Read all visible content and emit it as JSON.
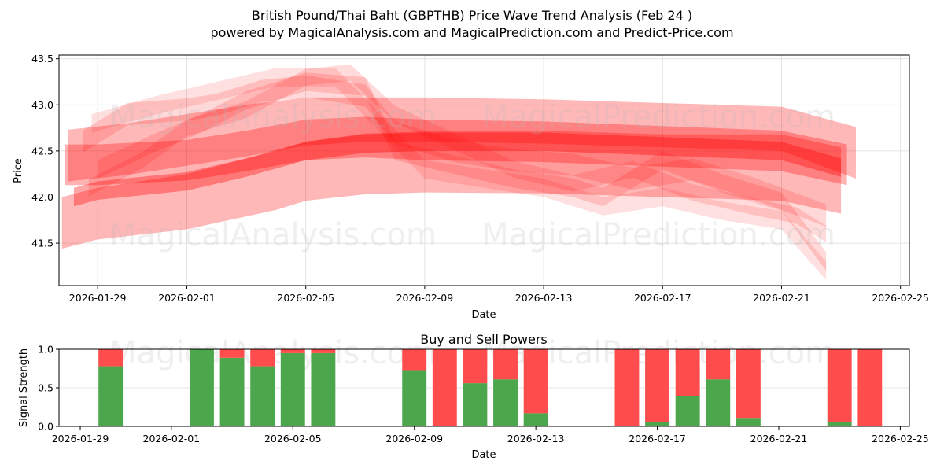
{
  "header": {
    "title": "British Pound/Thai Baht (GBPTHB) Price Wave Trend Analysis (Feb 24 )",
    "subtitle": "powered by MagicalAnalysis.com and MagicalPrediction.com and Predict-Price.com"
  },
  "watermarks": [
    "MagicalAnalysis.com",
    "MagicalPrediction.com"
  ],
  "colors": {
    "band": "#ff0000",
    "buy": "#4ca64c",
    "sell": "#ff4c4c",
    "grid": "#dddddd"
  },
  "chart_data": [
    {
      "type": "area",
      "title": "",
      "xlabel": "Date",
      "ylabel": "Price",
      "ylim": [
        41.04,
        43.54
      ],
      "yticks": [
        41.5,
        42.0,
        42.5,
        43.0,
        43.5
      ],
      "ytick_labels": [
        "41.5",
        "42.0",
        "42.5",
        "43.0",
        "43.5"
      ],
      "xticks": [
        "2026-01-29",
        "2026-02-01",
        "2026-02-05",
        "2026-02-09",
        "2026-02-13",
        "2026-02-17",
        "2026-02-21",
        "2026-02-25"
      ],
      "xtick_days": [
        0,
        3,
        7,
        11,
        15,
        19,
        23,
        27
      ],
      "xlim_days": [
        -1.3,
        27.3
      ],
      "grid": true,
      "bands": [
        {
          "name": "wide-low",
          "alpha": 0.28,
          "x": [
            -1.2,
            0,
            3,
            6,
            7,
            9,
            11,
            15,
            19,
            23,
            25
          ],
          "center": [
            41.72,
            41.82,
            41.95,
            42.18,
            42.28,
            42.36,
            42.38,
            42.38,
            42.34,
            42.32,
            42.18
          ],
          "half": [
            0.28,
            0.28,
            0.3,
            0.32,
            0.32,
            0.33,
            0.33,
            0.34,
            0.34,
            0.36,
            0.36
          ]
        },
        {
          "name": "wide-high",
          "alpha": 0.28,
          "x": [
            -1,
            1,
            3,
            5,
            7,
            9,
            11,
            15,
            19,
            23,
            25.5
          ],
          "center": [
            42.45,
            42.52,
            42.62,
            42.72,
            42.82,
            42.84,
            42.84,
            42.82,
            42.78,
            42.74,
            42.48
          ],
          "half": [
            0.28,
            0.28,
            0.28,
            0.28,
            0.26,
            0.24,
            0.24,
            0.24,
            0.24,
            0.24,
            0.28
          ]
        },
        {
          "name": "mid-1",
          "alpha": 0.3,
          "x": [
            -1.1,
            0,
            3,
            5,
            7,
            9,
            11,
            15,
            19,
            23,
            25.2
          ],
          "center": [
            42.35,
            42.35,
            42.4,
            42.5,
            42.62,
            42.65,
            42.62,
            42.6,
            42.55,
            42.5,
            42.35
          ],
          "half": [
            0.22,
            0.22,
            0.22,
            0.22,
            0.22,
            0.22,
            0.22,
            0.22,
            0.22,
            0.22,
            0.22
          ]
        },
        {
          "name": "core",
          "alpha": 0.35,
          "x": [
            -0.8,
            0,
            3,
            5,
            7,
            9,
            11,
            15,
            19,
            23,
            25
          ],
          "center": [
            42.0,
            42.07,
            42.17,
            42.32,
            42.5,
            42.58,
            42.6,
            42.6,
            42.55,
            42.5,
            42.32
          ],
          "half": [
            0.1,
            0.1,
            0.1,
            0.1,
            0.1,
            0.1,
            0.1,
            0.1,
            0.1,
            0.1,
            0.1
          ]
        },
        {
          "name": "wave-a",
          "alpha": 0.15,
          "x": [
            -0.5,
            1,
            3,
            4,
            5.5,
            7,
            9,
            10,
            12,
            14,
            16,
            18,
            20,
            22,
            24.5
          ],
          "center": [
            42.6,
            42.9,
            42.95,
            43.0,
            43.15,
            43.2,
            43.1,
            42.7,
            42.5,
            42.4,
            42.35,
            42.2,
            42.3,
            42.1,
            41.8
          ],
          "half": [
            0.12,
            0.12,
            0.12,
            0.12,
            0.12,
            0.12,
            0.12,
            0.12,
            0.12,
            0.12,
            0.12,
            0.12,
            0.12,
            0.12,
            0.12
          ]
        },
        {
          "name": "wave-b",
          "alpha": 0.15,
          "x": [
            0,
            2,
            3.5,
            5,
            7,
            9,
            10,
            12,
            14,
            16,
            17,
            19,
            21,
            23,
            24.5
          ],
          "center": [
            42.3,
            42.6,
            42.8,
            43.05,
            43.25,
            43.2,
            42.5,
            42.35,
            42.2,
            42.1,
            42.0,
            42.4,
            42.15,
            41.95,
            41.3
          ],
          "half": [
            0.1,
            0.1,
            0.1,
            0.1,
            0.1,
            0.1,
            0.1,
            0.1,
            0.1,
            0.1,
            0.1,
            0.1,
            0.1,
            0.1,
            0.1
          ]
        },
        {
          "name": "wave-c",
          "alpha": 0.14,
          "x": [
            -0.3,
            1.5,
            3,
            5,
            7,
            8.5,
            10,
            12,
            14,
            16,
            18,
            20,
            22,
            23.5,
            24.5
          ],
          "center": [
            42.1,
            42.4,
            42.75,
            42.95,
            43.3,
            43.35,
            42.9,
            42.6,
            42.3,
            42.15,
            42.3,
            42.05,
            41.9,
            41.8,
            41.6
          ],
          "half": [
            0.09,
            0.09,
            0.09,
            0.09,
            0.09,
            0.09,
            0.09,
            0.09,
            0.09,
            0.09,
            0.09,
            0.09,
            0.09,
            0.09,
            0.09
          ]
        },
        {
          "name": "wave-d",
          "alpha": 0.12,
          "x": [
            -0.2,
            2,
            4,
            6,
            8,
            9.5,
            11,
            13,
            15,
            17,
            19,
            21,
            23,
            24.5
          ],
          "center": [
            42.8,
            43.0,
            43.15,
            43.3,
            43.3,
            42.8,
            42.3,
            42.2,
            42.1,
            41.9,
            42.0,
            41.85,
            41.75,
            41.2
          ],
          "half": [
            0.1,
            0.1,
            0.1,
            0.1,
            0.1,
            0.1,
            0.1,
            0.1,
            0.1,
            0.1,
            0.1,
            0.1,
            0.1,
            0.1
          ]
        }
      ]
    },
    {
      "type": "bar",
      "title": "Buy and Sell Powers",
      "xlabel": "Date",
      "ylabel": "Signal Strength",
      "ylim": [
        0,
        1
      ],
      "yticks": [
        0.0,
        0.5,
        1.0
      ],
      "ytick_labels": [
        "0.0",
        "0.5",
        "1.0"
      ],
      "xticks": [
        "2026-01-29",
        "2026-02-01",
        "2026-02-05",
        "2026-02-09",
        "2026-02-13",
        "2026-02-17",
        "2026-02-21",
        "2026-02-25"
      ],
      "xtick_days": [
        0,
        3,
        7,
        11,
        15,
        19,
        23,
        27
      ],
      "xlim_days": [
        -0.7,
        27.3
      ],
      "categories": [
        "2026-01-30",
        "2026-02-02",
        "2026-02-03",
        "2026-02-04",
        "2026-02-05",
        "2026-02-06",
        "2026-02-09",
        "2026-02-10",
        "2026-02-11",
        "2026-02-12",
        "2026-02-13",
        "2026-02-16",
        "2026-02-17",
        "2026-02-18",
        "2026-02-19",
        "2026-02-20",
        "2026-02-23",
        "2026-02-24"
      ],
      "category_days": [
        1,
        4,
        5,
        6,
        7,
        8,
        11,
        12,
        13,
        14,
        15,
        18,
        19,
        20,
        21,
        22,
        25,
        26
      ],
      "series": [
        {
          "name": "Buy",
          "values": [
            0.78,
            1.0,
            0.89,
            0.78,
            0.95,
            0.95,
            0.73,
            0.0,
            0.56,
            0.61,
            0.17,
            0.0,
            0.06,
            0.39,
            0.61,
            0.11,
            0.06,
            0.0
          ]
        },
        {
          "name": "Sell",
          "values": [
            0.22,
            0.0,
            0.11,
            0.22,
            0.05,
            0.05,
            0.27,
            1.0,
            0.44,
            0.39,
            0.83,
            1.0,
            0.94,
            0.61,
            0.39,
            0.89,
            0.94,
            1.0
          ]
        }
      ]
    }
  ]
}
